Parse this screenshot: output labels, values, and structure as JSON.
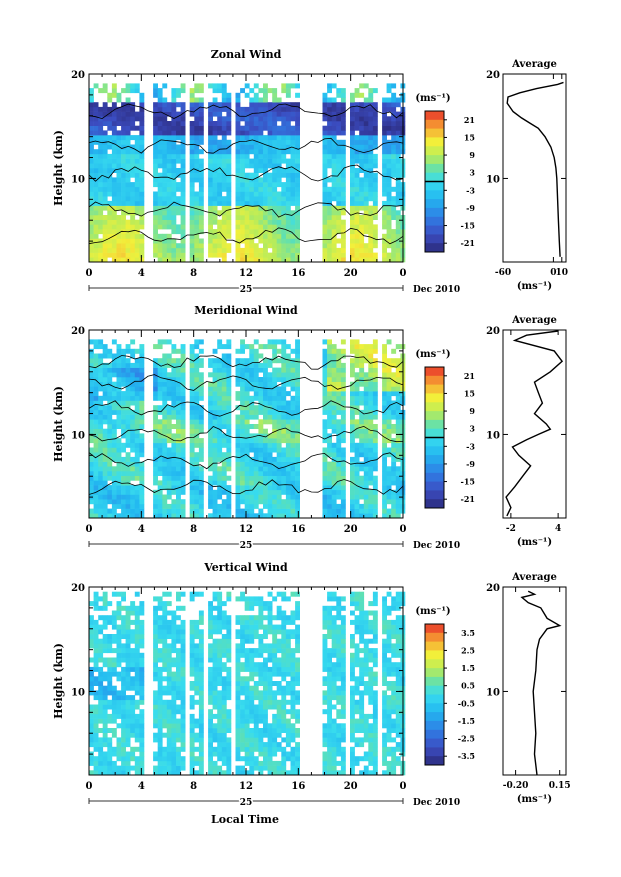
{
  "figure": {
    "xlabel": "Local Time",
    "date_label": "Dec 2010",
    "day_label": "25",
    "x_ticks": [
      "0",
      "4",
      "8",
      "12",
      "16",
      "20",
      "0"
    ],
    "y_ticks": [
      "20",
      "10"
    ],
    "ylabel": "Height (km)",
    "colorbar_unit": "(ms⁻¹)",
    "profile_unit": "(ms⁻¹)"
  },
  "chart_data": [
    {
      "type": "heatmap",
      "title": "Zonal Wind",
      "xlabel": "Local Time",
      "ylabel": "Height (km)",
      "xlim": [
        0,
        24
      ],
      "ylim": [
        2,
        20
      ],
      "colorbar": {
        "unit": "(ms⁻¹)",
        "ticks": [
          "21",
          "15",
          "9",
          "3",
          "-3",
          "-9",
          "-15",
          "-21"
        ],
        "range": [
          -24,
          24
        ],
        "zero_line": true
      },
      "gaps_hours": [
        [
          4.3,
          4.8
        ],
        [
          7.2,
          7.6
        ],
        [
          8.7,
          9.1
        ],
        [
          10.9,
          11.3
        ],
        [
          16.2,
          17.8
        ],
        [
          19.7,
          20.1
        ],
        [
          21.9,
          22.3
        ]
      ],
      "profile": {
        "title": "Average",
        "xlabel": "(ms⁻¹)",
        "x_ticks": [
          "-60",
          "0",
          "10"
        ],
        "xlim": [
          -60,
          15
        ],
        "ylim": [
          2,
          20
        ],
        "points": [
          [
            8,
            2.5
          ],
          [
            7,
            4
          ],
          [
            6,
            6
          ],
          [
            5,
            8
          ],
          [
            4,
            10
          ],
          [
            3,
            11
          ],
          [
            1,
            12
          ],
          [
            -3,
            13
          ],
          [
            -10,
            14
          ],
          [
            -18,
            14.8
          ],
          [
            -28,
            15.3
          ],
          [
            -38,
            15.8
          ],
          [
            -48,
            16.4
          ],
          [
            -55,
            17.2
          ],
          [
            -54,
            17.8
          ],
          [
            -40,
            18.2
          ],
          [
            -20,
            18.6
          ],
          [
            5,
            19
          ],
          [
            12,
            19.2
          ]
        ]
      }
    },
    {
      "type": "heatmap",
      "title": "Meridional Wind",
      "xlabel": "Local Time",
      "ylabel": "Height (km)",
      "xlim": [
        0,
        24
      ],
      "ylim": [
        2,
        20
      ],
      "colorbar": {
        "unit": "(ms⁻¹)",
        "ticks": [
          "21",
          "15",
          "9",
          "3",
          "-3",
          "-9",
          "-15",
          "-21"
        ],
        "range": [
          -24,
          24
        ],
        "zero_line": true
      },
      "gaps_hours": [
        [
          4.3,
          4.8
        ],
        [
          7.2,
          7.6
        ],
        [
          8.7,
          9.1
        ],
        [
          10.9,
          11.3
        ],
        [
          16.2,
          17.8
        ],
        [
          19.7,
          20.1
        ],
        [
          21.9,
          22.3
        ]
      ],
      "profile": {
        "title": "Average",
        "xlabel": "(ms⁻¹)",
        "x_ticks": [
          "-2",
          "4"
        ],
        "xlim": [
          -3,
          5
        ],
        "ylim": [
          2,
          20
        ],
        "points": [
          [
            -2.5,
            2.2
          ],
          [
            -2,
            3
          ],
          [
            -2.6,
            4
          ],
          [
            -1.5,
            5
          ],
          [
            -0.5,
            6
          ],
          [
            0.5,
            7
          ],
          [
            -1,
            8
          ],
          [
            -1.8,
            8.8
          ],
          [
            0,
            9.5
          ],
          [
            1.5,
            10
          ],
          [
            3,
            10.5
          ],
          [
            2.5,
            11
          ],
          [
            1,
            12
          ],
          [
            2,
            13
          ],
          [
            1.5,
            14
          ],
          [
            1,
            15
          ],
          [
            3,
            16
          ],
          [
            4.5,
            17
          ],
          [
            3.5,
            18
          ],
          [
            -1.5,
            19
          ],
          [
            0,
            19.5
          ],
          [
            4,
            19.9
          ]
        ]
      }
    },
    {
      "type": "heatmap",
      "title": "Vertical Wind",
      "xlabel": "Local Time",
      "ylabel": "Height (km)",
      "xlim": [
        0,
        24
      ],
      "ylim": [
        2,
        20
      ],
      "colorbar": {
        "unit": "(ms⁻¹)",
        "ticks": [
          "3.5",
          "2.5",
          "1.5",
          "0.5",
          "-0.5",
          "-1.5",
          "-2.5",
          "-3.5"
        ],
        "range": [
          -4,
          4
        ],
        "zero_line": false
      },
      "gaps_hours": [
        [
          4.3,
          4.8
        ],
        [
          7.2,
          7.6
        ],
        [
          8.7,
          9.1
        ],
        [
          10.9,
          11.3
        ],
        [
          16.2,
          17.8
        ],
        [
          19.7,
          20.1
        ],
        [
          21.9,
          22.3
        ]
      ],
      "profile": {
        "title": "Average",
        "xlabel": "(ms⁻¹)",
        "x_ticks": [
          "-0.20",
          "0.15"
        ],
        "xlim": [
          -0.3,
          0.2
        ],
        "ylim": [
          2,
          20
        ],
        "points": [
          [
            -0.03,
            2
          ],
          [
            -0.05,
            4
          ],
          [
            -0.04,
            6
          ],
          [
            -0.05,
            8
          ],
          [
            -0.06,
            10
          ],
          [
            -0.04,
            12
          ],
          [
            -0.03,
            14
          ],
          [
            -0.01,
            15
          ],
          [
            0.05,
            16
          ],
          [
            0.15,
            16.3
          ],
          [
            0.05,
            17
          ],
          [
            0,
            18
          ],
          [
            -0.1,
            18.5
          ],
          [
            -0.15,
            19
          ],
          [
            -0.05,
            19.3
          ],
          [
            -0.1,
            19.6
          ]
        ]
      }
    }
  ]
}
